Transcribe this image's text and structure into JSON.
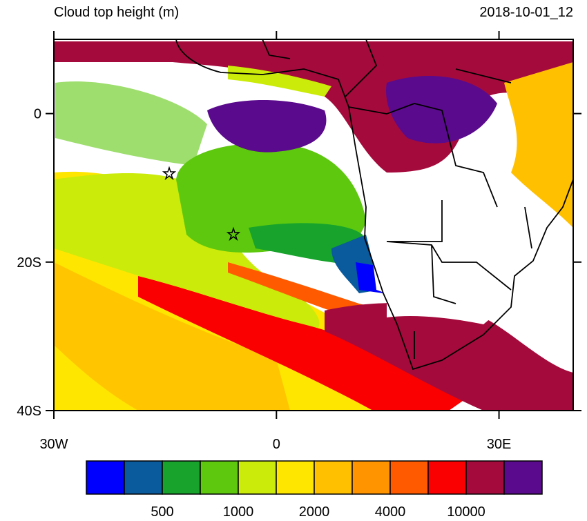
{
  "chart_data": {
    "type": "map",
    "title": "Cloud top height (m)",
    "time": "2018-10-01_12",
    "xlim": [
      -30,
      40
    ],
    "ylim": [
      -40,
      10
    ],
    "xticks": [
      {
        "value": -30,
        "label": "30W"
      },
      0,
      {
        "value": 30,
        "label": "30E"
      }
    ],
    "yticks": [
      0,
      {
        "value": -20,
        "label": "20S"
      },
      {
        "value": -40,
        "label": "40S"
      }
    ],
    "colorbar": {
      "colors": [
        "#0000ff",
        "#0a5a9e",
        "#17a32c",
        "#5dc80e",
        "#cbeb0a",
        "#ffe600",
        "#ffc000",
        "#ff9400",
        "#ff5a00",
        "#fa0000",
        "#a50a3c",
        "#5a0a8c"
      ],
      "labels": [
        500,
        1000,
        2000,
        4000,
        10000
      ]
    }
  }
}
